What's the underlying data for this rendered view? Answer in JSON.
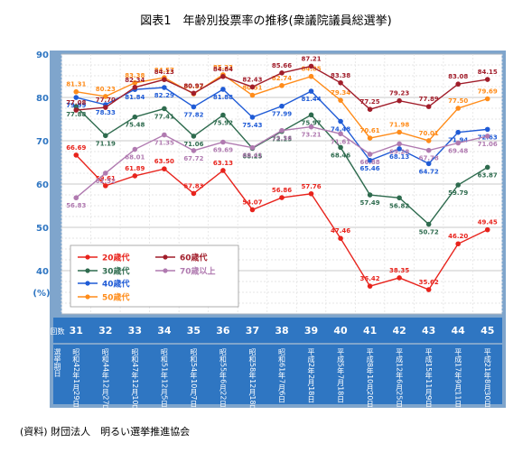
{
  "title": "図表1　年齢別投票率の推移(衆議院議員総選挙)",
  "source": "(資料) 財団法人　明るい選挙推進協会",
  "row_labels": {
    "index": "回数",
    "date": "選挙期日"
  },
  "chart_data": {
    "type": "line",
    "ylim": [
      30,
      90
    ],
    "yticks": [
      40,
      50,
      60,
      70,
      80,
      90
    ],
    "ylabel": "(%)",
    "grid": true,
    "legend": "bottom-left",
    "x": [
      "31",
      "32",
      "33",
      "34",
      "35",
      "36",
      "37",
      "38",
      "39",
      "40",
      "41",
      "42",
      "43",
      "44",
      "45"
    ],
    "dates": [
      "昭和42年1月29日",
      "昭和44年12月27日",
      "昭和47年12月10日",
      "昭和51年12月5日",
      "昭和54年10月7日",
      "昭和55年6月22日",
      "昭和58年12月18日",
      "昭和61年7月6日",
      "平成2年2月18日",
      "平成5年7月18日",
      "平成8年10月20日",
      "平成12年6月25日",
      "平成15年11月9日",
      "平成17年9月11日",
      "平成21年8月30日"
    ],
    "series": [
      {
        "name": "20歳代",
        "color": "#e8231c",
        "values": [
          66.69,
          59.61,
          61.89,
          63.5,
          57.83,
          63.13,
          54.07,
          56.86,
          57.76,
          47.46,
          36.42,
          38.35,
          35.62,
          46.2,
          49.45
        ]
      },
      {
        "name": "30歳代",
        "color": "#2e6b4e",
        "values": [
          77.88,
          71.19,
          75.48,
          77.41,
          71.06,
          75.92,
          68.25,
          72.15,
          75.97,
          68.46,
          57.49,
          56.82,
          50.72,
          59.79,
          63.87
        ]
      },
      {
        "name": "40歳代",
        "color": "#1f5bd6",
        "values": [
          79.99,
          78.33,
          81.84,
          82.29,
          77.82,
          81.88,
          75.43,
          77.99,
          81.44,
          74.48,
          65.46,
          68.13,
          64.72,
          71.94,
          72.63
        ]
      },
      {
        "name": "50歳代",
        "color": "#ff8c1a",
        "values": [
          81.31,
          80.23,
          83.38,
          84.57,
          80.82,
          85.23,
          80.51,
          82.74,
          84.85,
          79.34,
          70.61,
          71.98,
          70.01,
          77.5,
          79.69
        ]
      },
      {
        "name": "60歳代",
        "color": "#a11d2a",
        "values": [
          77.08,
          77.7,
          82.34,
          84.13,
          80.97,
          84.84,
          82.43,
          85.66,
          87.21,
          83.38,
          77.25,
          79.23,
          77.89,
          83.08,
          84.15
        ]
      },
      {
        "name": "70歳以上",
        "color": "#b07ab0",
        "values": [
          56.83,
          62.52,
          68.01,
          71.35,
          67.72,
          69.69,
          68.41,
          72.36,
          73.21,
          71.61,
          66.88,
          69.28,
          67.78,
          69.48,
          71.06
        ]
      }
    ]
  }
}
